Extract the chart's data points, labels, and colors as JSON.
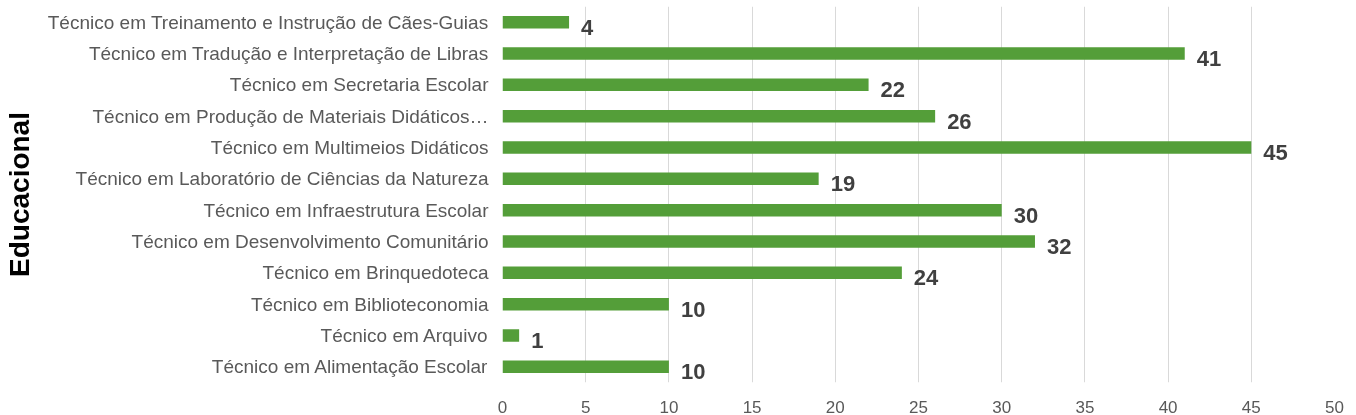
{
  "chart_data": {
    "type": "bar",
    "orientation": "horizontal",
    "ylabel": "Educacional",
    "categories": [
      "Técnico em Treinamento e Instrução de Cães-Guias",
      "Técnico em Tradução e Interpretação de Libras",
      "Técnico em Secretaria Escolar",
      "Técnico em Produção de Materiais Didáticos…",
      "Técnico em Multimeios Didáticos",
      "Técnico em Laboratório de Ciências da Natureza",
      "Técnico em Infraestrutura Escolar",
      "Técnico em Desenvolvimento Comunitário",
      "Técnico em Brinquedoteca",
      "Técnico em Biblioteconomia",
      "Técnico em Arquivo",
      "Técnico em Alimentação Escolar"
    ],
    "values": [
      4,
      41,
      22,
      26,
      45,
      19,
      30,
      32,
      24,
      10,
      1,
      10
    ],
    "color": "#549e39",
    "data_labels": true,
    "xlim": [
      0,
      50
    ],
    "xticks": [
      0,
      5,
      10,
      15,
      20,
      25,
      30,
      35,
      40,
      45,
      50
    ],
    "grid": "x"
  }
}
